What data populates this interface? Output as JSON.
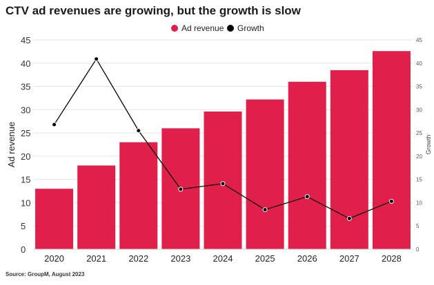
{
  "chart_data": {
    "type": "bar",
    "title": "CTV ad revenues are growing, but the growth is slow",
    "source": "Source: GroupM, August 2023",
    "categories": [
      "2020",
      "2021",
      "2022",
      "2023",
      "2024",
      "2025",
      "2026",
      "2027",
      "2028"
    ],
    "series": [
      {
        "name": "Ad revenue",
        "type": "bar",
        "axis": "left",
        "color": "#e0204b",
        "values": [
          13,
          18,
          23,
          26,
          29.6,
          32.2,
          36,
          38.5,
          42.6
        ]
      },
      {
        "name": "Growth",
        "type": "line",
        "axis": "right",
        "color": "#000000",
        "values": [
          26.8,
          40.9,
          25.5,
          12.9,
          14.1,
          8.5,
          11.3,
          6.6,
          10.3
        ]
      }
    ],
    "ylabel": "Ad revenue",
    "y2label": "Growth",
    "ylim": [
      0,
      45
    ],
    "y2lim": [
      0,
      45
    ],
    "yticks": [
      "0",
      "5",
      "10",
      "15",
      "20",
      "25",
      "30",
      "35",
      "40",
      "45"
    ],
    "y2ticks": [
      "0",
      "5",
      "10",
      "15",
      "20",
      "25",
      "30",
      "35",
      "40",
      "45"
    ],
    "grid": "horizontal",
    "legend_position": "top-center"
  }
}
